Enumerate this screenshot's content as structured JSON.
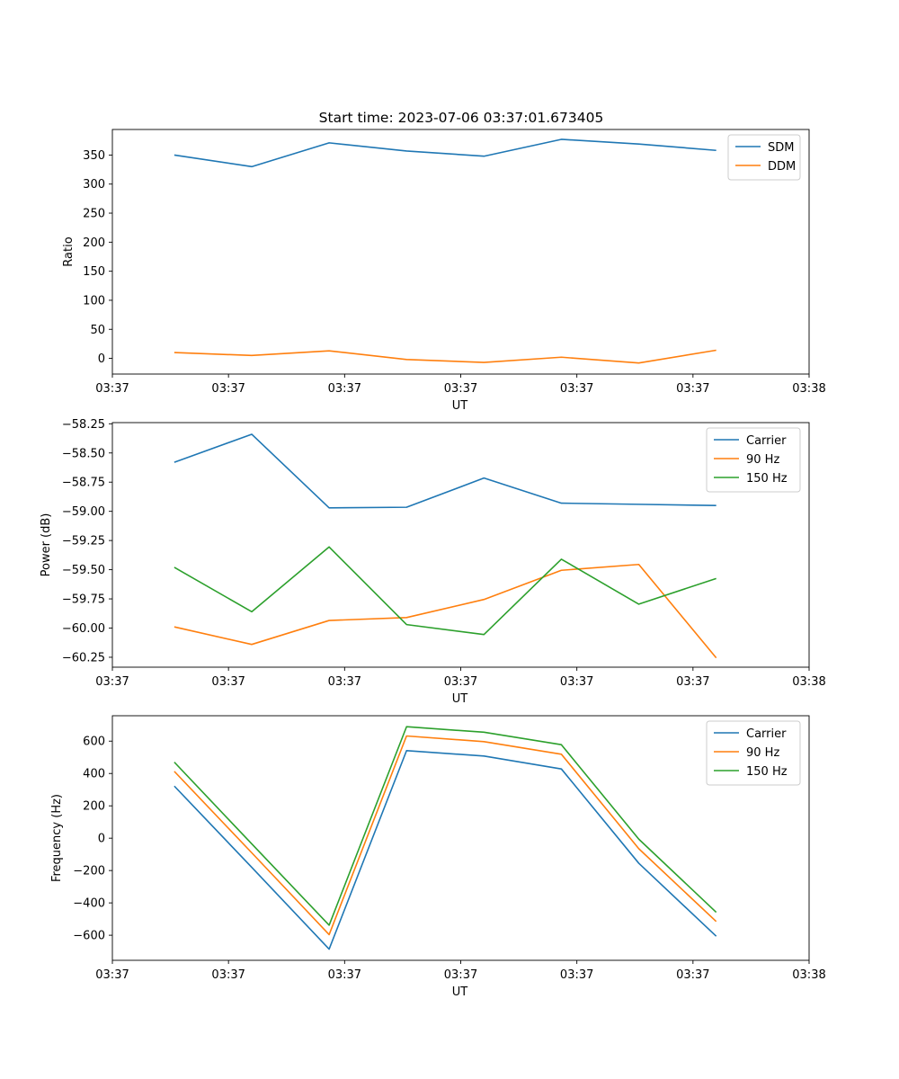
{
  "figure_title": "Start time: 2023-07-06 03:37:01.673405",
  "chart_data": [
    {
      "type": "line",
      "title": "Start time: 2023-07-06 03:37:01.673405",
      "xlabel": "UT",
      "ylabel": "Ratio",
      "x": [
        1,
        2,
        3,
        4,
        5,
        6,
        7,
        8
      ],
      "xlim": [
        0.2,
        9.2
      ],
      "xticks": [
        0.2,
        1.7,
        3.2,
        4.7,
        6.2,
        7.7,
        9.2
      ],
      "xtick_labels": [
        "03:37",
        "03:37",
        "03:37",
        "03:37",
        "03:37",
        "03:37",
        "03:38"
      ],
      "ylim": [
        -27,
        394
      ],
      "yticks": [
        0,
        50,
        100,
        150,
        200,
        250,
        300,
        350
      ],
      "ytick_labels": [
        "0",
        "50",
        "100",
        "150",
        "200",
        "250",
        "300",
        "350"
      ],
      "legend": "upper right",
      "series": [
        {
          "name": "SDM",
          "color": "#1f77b4",
          "values": [
            350,
            330,
            371,
            357,
            348,
            377,
            369,
            358
          ]
        },
        {
          "name": "DDM",
          "color": "#ff7f0e",
          "values": [
            10,
            5,
            13,
            -2,
            -7,
            2,
            -8,
            14
          ]
        }
      ]
    },
    {
      "type": "line",
      "title": "",
      "xlabel": "UT",
      "ylabel": "Power (dB)",
      "x": [
        1,
        2,
        3,
        4,
        5,
        6,
        7,
        8
      ],
      "xlim": [
        0.2,
        9.2
      ],
      "xticks": [
        0.2,
        1.7,
        3.2,
        4.7,
        6.2,
        7.7,
        9.2
      ],
      "xtick_labels": [
        "03:37",
        "03:37",
        "03:37",
        "03:37",
        "03:37",
        "03:37",
        "03:38"
      ],
      "ylim": [
        -60.335,
        -58.24
      ],
      "yticks": [
        -60.25,
        -60.0,
        -59.75,
        -59.5,
        -59.25,
        -59.0,
        -58.75,
        -58.5,
        -58.25
      ],
      "ytick_labels": [
        "−60.25",
        "−60.00",
        "−59.75",
        "−59.50",
        "−59.25",
        "−59.00",
        "−58.75",
        "−58.50",
        "−58.25"
      ],
      "legend": "upper right",
      "series": [
        {
          "name": "Carrier",
          "color": "#1f77b4",
          "values": [
            -58.58,
            -58.34,
            -58.97,
            -58.965,
            -58.715,
            -58.93,
            -58.94,
            -58.95
          ]
        },
        {
          "name": "90 Hz",
          "color": "#ff7f0e",
          "values": [
            -59.99,
            -60.14,
            -59.935,
            -59.91,
            -59.755,
            -59.505,
            -59.455,
            -60.255
          ]
        },
        {
          "name": "150 Hz",
          "color": "#2ca02c",
          "values": [
            -59.48,
            -59.86,
            -59.305,
            -59.97,
            -60.055,
            -59.41,
            -59.795,
            -59.575
          ]
        }
      ]
    },
    {
      "type": "line",
      "title": "",
      "xlabel": "UT",
      "ylabel": "Frequency (Hz)",
      "x": [
        1,
        2,
        3,
        4,
        5,
        6,
        7,
        8
      ],
      "xlim": [
        0.2,
        9.2
      ],
      "xticks": [
        0.2,
        1.7,
        3.2,
        4.7,
        6.2,
        7.7,
        9.2
      ],
      "xtick_labels": [
        "03:37",
        "03:37",
        "03:37",
        "03:37",
        "03:37",
        "03:37",
        "03:38"
      ],
      "ylim": [
        -755,
        757
      ],
      "yticks": [
        -600,
        -400,
        -200,
        0,
        200,
        400,
        600
      ],
      "ytick_labels": [
        "−600",
        "−400",
        "−200",
        "0",
        "200",
        "400",
        "600"
      ],
      "legend": "upper right",
      "series": [
        {
          "name": "Carrier",
          "color": "#1f77b4",
          "values": [
            322,
            -180,
            -686,
            541,
            508,
            428,
            -155,
            -606
          ]
        },
        {
          "name": "90 Hz",
          "color": "#ff7f0e",
          "values": [
            413,
            -90,
            -596,
            632,
            597,
            519,
            -65,
            -515
          ]
        },
        {
          "name": "150 Hz",
          "color": "#2ca02c",
          "values": [
            470,
            -35,
            -538,
            689,
            655,
            578,
            -6,
            -458
          ]
        }
      ]
    }
  ]
}
